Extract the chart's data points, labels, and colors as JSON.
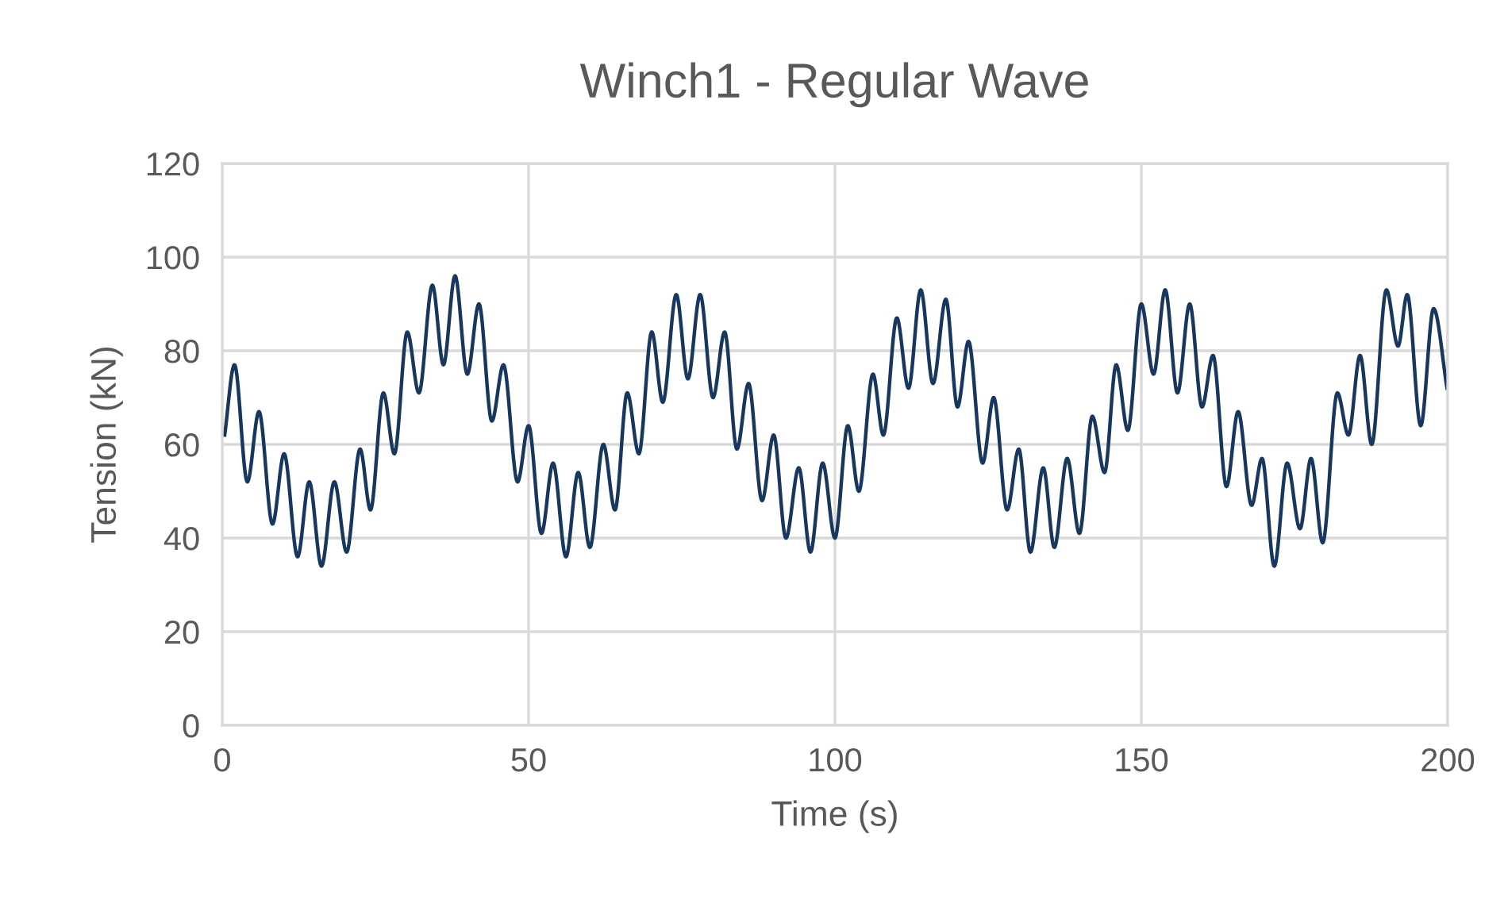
{
  "chart_data": {
    "type": "line",
    "title": "Winch1 - Regular Wave",
    "xlabel": "Time (s)",
    "ylabel": "Tension (kN)",
    "xlim": [
      0,
      200
    ],
    "xticks": [
      0,
      50,
      100,
      150,
      200
    ],
    "ylim": [
      0,
      120
    ],
    "yticks": [
      0,
      20,
      40,
      60,
      80,
      100,
      120
    ],
    "grid": true,
    "legend": false,
    "series": [
      {
        "color": "#17375e",
        "x": [
          0.4,
          2.0,
          4.1,
          6.0,
          8.2,
          10.1,
          12.3,
          14.2,
          16.2,
          18.3,
          20.3,
          22.5,
          24.2,
          26.3,
          28.1,
          30.2,
          32.1,
          34.3,
          36.1,
          38.0,
          40.0,
          41.9,
          44.0,
          45.9,
          48.2,
          50.0,
          52.1,
          54.0,
          56.1,
          58.1,
          60.0,
          62.2,
          64.1,
          66.1,
          68.0,
          70.1,
          71.9,
          74.1,
          76.0,
          78.0,
          80.1,
          82.0,
          84.0,
          85.9,
          88.1,
          90.0,
          92.0,
          94.1,
          96.0,
          98.0,
          100.0,
          102.1,
          103.9,
          106.2,
          107.9,
          110.1,
          112.0,
          114.0,
          116.0,
          118.1,
          120.0,
          121.8,
          124.1,
          125.9,
          128.1,
          130.0,
          131.9,
          134.0,
          135.8,
          137.9,
          139.9,
          142.0,
          144.0,
          145.9,
          147.8,
          150.0,
          152.0,
          153.9,
          155.9,
          157.9,
          159.9,
          161.7,
          163.9,
          165.8,
          168.0,
          169.7,
          171.7,
          173.8,
          175.9,
          177.7,
          179.6,
          182.0,
          183.8,
          185.7,
          187.6,
          190.0,
          191.9,
          193.4,
          195.6,
          197.7,
          199.9
        ],
        "values": [
          62,
          77,
          52,
          67,
          43,
          58,
          36,
          52,
          34,
          52,
          37,
          59,
          46,
          71,
          58,
          84,
          71,
          94,
          77,
          96,
          75,
          90,
          65,
          77,
          52,
          64,
          41,
          56,
          36,
          54,
          38,
          60,
          46,
          71,
          58,
          84,
          69,
          92,
          74,
          92,
          70,
          84,
          59,
          73,
          48,
          62,
          40,
          55,
          37,
          56,
          40,
          64,
          50,
          75,
          62,
          87,
          72,
          93,
          73,
          91,
          68,
          82,
          56,
          70,
          46,
          59,
          37,
          55,
          38,
          57,
          41,
          66,
          54,
          77,
          63,
          90,
          75,
          93,
          71,
          90,
          68,
          79,
          51,
          67,
          47,
          57,
          34,
          56,
          42,
          57,
          39,
          71,
          62,
          79,
          60,
          93,
          81,
          92,
          64,
          89,
          72
        ]
      }
    ]
  }
}
